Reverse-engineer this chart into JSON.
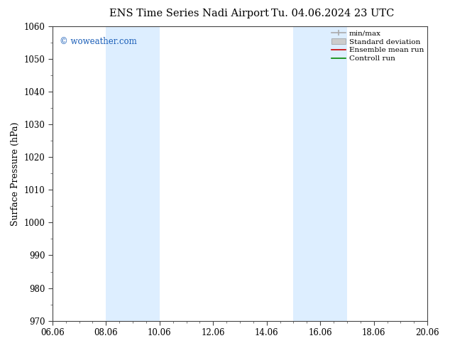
{
  "title_left": "ENS Time Series Nadi Airport",
  "title_right": "Tu. 04.06.2024 23 UTC",
  "ylabel": "Surface Pressure (hPa)",
  "ylim": [
    970,
    1060
  ],
  "yticks": [
    970,
    980,
    990,
    1000,
    1010,
    1020,
    1030,
    1040,
    1050,
    1060
  ],
  "xlim_start": 0,
  "xlim_end": 14,
  "xtick_labels": [
    "06.06",
    "08.06",
    "10.06",
    "12.06",
    "14.06",
    "16.06",
    "18.06",
    "20.06"
  ],
  "xtick_positions": [
    0,
    2,
    4,
    6,
    8,
    10,
    12,
    14
  ],
  "shade_bands": [
    {
      "x_start": 2,
      "x_end": 4
    },
    {
      "x_start": 9,
      "x_end": 11
    }
  ],
  "shade_color": "#ddeeff",
  "copyright_text": "© woweather.com",
  "copyright_color": "#1a5eb8",
  "legend_items": [
    {
      "label": "min/max",
      "color": "#aaaaaa",
      "lw": 1.2,
      "style": "line_caps"
    },
    {
      "label": "Standard deviation",
      "color": "#cccccc",
      "lw": 8,
      "style": "box"
    },
    {
      "label": "Ensemble mean run",
      "color": "#cc0000",
      "lw": 1.2,
      "style": "line"
    },
    {
      "label": "Controll run",
      "color": "#008800",
      "lw": 1.2,
      "style": "line"
    }
  ],
  "bg_color": "#ffffff",
  "plot_bg_color": "#ffffff",
  "spine_color": "#444444",
  "title_fontsize": 10.5,
  "ylabel_fontsize": 9,
  "tick_fontsize": 8.5,
  "copyright_fontsize": 8.5,
  "legend_fontsize": 7.5
}
